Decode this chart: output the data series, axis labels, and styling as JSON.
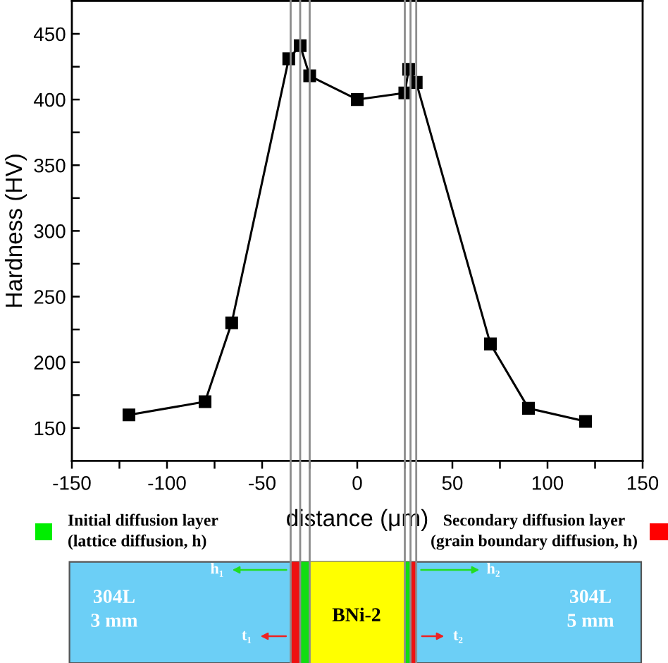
{
  "chart_data": {
    "type": "line",
    "xlabel": "distance (μm)",
    "ylabel": "Hardness (HV)",
    "x": [
      -120,
      -80,
      -66,
      -36,
      -30,
      -25,
      0,
      25,
      27,
      31,
      70,
      90,
      120
    ],
    "values": [
      160,
      170,
      230,
      431,
      441,
      418,
      400,
      405,
      423,
      413,
      214,
      165,
      155
    ],
    "color": "#000000",
    "marker": "square",
    "line_style": "solid",
    "xlim": [
      -150,
      150
    ],
    "ylim": [
      125,
      475
    ],
    "xticks": [
      -150,
      {
        "value": -125,
        "label": null
      },
      -100,
      {
        "value": -75,
        "label": null
      },
      -50,
      {
        "value": -25,
        "label": null
      },
      0,
      {
        "value": 25,
        "label": null
      },
      50,
      {
        "value": 75,
        "label": null
      },
      100,
      {
        "value": 125,
        "label": null
      },
      150
    ],
    "yticks": [
      150,
      {
        "value": 175,
        "label": null
      },
      200,
      {
        "value": 225,
        "label": null
      },
      250,
      {
        "value": 275,
        "label": null
      },
      300,
      {
        "value": 325,
        "label": null
      },
      350,
      {
        "value": 375,
        "label": null
      },
      400,
      {
        "value": 425,
        "label": null
      },
      450
    ],
    "ref_lines": [
      {
        "axis": "x",
        "value": -35,
        "color": "#8c8c8c"
      },
      {
        "axis": "x",
        "value": -30,
        "color": "#8c8c8c"
      },
      {
        "axis": "x",
        "value": -25,
        "color": "#8c8c8c"
      },
      {
        "axis": "x",
        "value": 25,
        "color": "#8c8c8c"
      },
      {
        "axis": "x",
        "value": 28,
        "color": "#8c8c8c"
      },
      {
        "axis": "x",
        "value": 31,
        "color": "#8c8c8c"
      }
    ],
    "annotations": [
      "Initial diffusion layer\n(lattice diffusion, h)",
      "Secondary diffusion layer\n(grain boundary diffusion, h)",
      "304L\n3 mm",
      "BNi-2",
      "304L\n5 mm",
      "h₁",
      "h₂",
      "t₁",
      "t₂"
    ]
  }
}
